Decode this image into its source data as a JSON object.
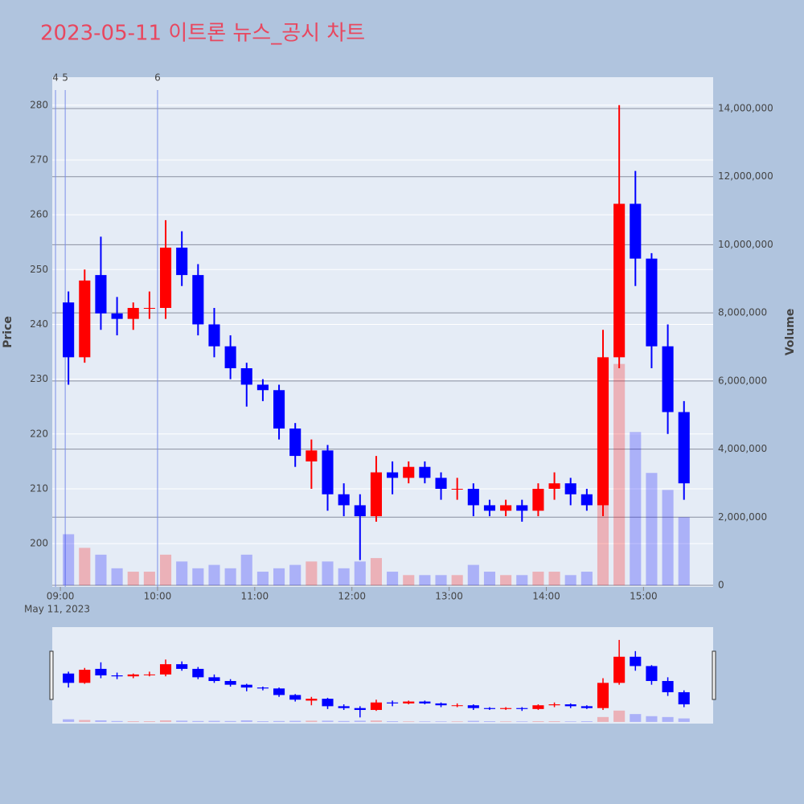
{
  "chart_data": {
    "type": "candlestick",
    "title": "2023-05-11 이트론 뉴스_공시 차트",
    "y_label": "Price",
    "y2_label": "Volume",
    "x_date_label": "May 11, 2023",
    "up_color": "#ff0000",
    "down_color": "#0000ff",
    "x": [
      "2023-05-11T09:00",
      "2023-05-11T09:10",
      "2023-05-11T09:20",
      "2023-05-11T09:30",
      "2023-05-11T09:40",
      "2023-05-11T09:50",
      "2023-05-11T10:00",
      "2023-05-11T10:10",
      "2023-05-11T10:20",
      "2023-05-11T10:30",
      "2023-05-11T10:40",
      "2023-05-11T10:50",
      "2023-05-11T11:00",
      "2023-05-11T11:10",
      "2023-05-11T11:20",
      "2023-05-11T11:30",
      "2023-05-11T11:40",
      "2023-05-11T11:50",
      "2023-05-11T12:00",
      "2023-05-11T12:10",
      "2023-05-11T12:20",
      "2023-05-11T12:30",
      "2023-05-11T12:40",
      "2023-05-11T12:50",
      "2023-05-11T13:00",
      "2023-05-11T13:10",
      "2023-05-11T13:20",
      "2023-05-11T13:30",
      "2023-05-11T13:40",
      "2023-05-11T13:50",
      "2023-05-11T14:00",
      "2023-05-11T14:10",
      "2023-05-11T14:20",
      "2023-05-11T14:30",
      "2023-05-11T14:40",
      "2023-05-11T14:50",
      "2023-05-11T15:00",
      "2023-05-11T15:10",
      "2023-05-11T15:20"
    ],
    "open": [
      244,
      234,
      249,
      242,
      241,
      243,
      243,
      254,
      249,
      240,
      236,
      232,
      229,
      228,
      221,
      215,
      217,
      209,
      207,
      205,
      213,
      212,
      214,
      212,
      210,
      210,
      207,
      206,
      207,
      206,
      210,
      211,
      209,
      207,
      234,
      262,
      252,
      236,
      224
    ],
    "high": [
      246,
      250,
      256,
      245,
      244,
      246,
      259,
      257,
      251,
      243,
      238,
      233,
      230,
      229,
      222,
      219,
      218,
      211,
      209,
      216,
      215,
      215,
      215,
      213,
      212,
      211,
      208,
      208,
      208,
      211,
      213,
      212,
      210,
      239,
      280,
      268,
      253,
      240,
      226
    ],
    "low": [
      229,
      233,
      239,
      238,
      239,
      241,
      241,
      247,
      238,
      234,
      230,
      225,
      226,
      219,
      214,
      210,
      206,
      205,
      197,
      204,
      209,
      211,
      211,
      208,
      208,
      205,
      205,
      205,
      204,
      205,
      208,
      207,
      206,
      205,
      232,
      247,
      232,
      220,
      208
    ],
    "close": [
      234,
      248,
      242,
      241,
      243,
      243,
      254,
      249,
      240,
      236,
      232,
      229,
      228,
      221,
      216,
      217,
      209,
      207,
      205,
      213,
      212,
      214,
      212,
      210,
      210,
      207,
      206,
      207,
      206,
      210,
      211,
      209,
      207,
      234,
      262,
      252,
      236,
      224,
      211
    ],
    "volume": [
      1500000,
      1100000,
      900000,
      500000,
      400000,
      400000,
      900000,
      700000,
      500000,
      600000,
      500000,
      900000,
      400000,
      500000,
      600000,
      700000,
      700000,
      500000,
      700000,
      800000,
      400000,
      300000,
      300000,
      300000,
      300000,
      600000,
      400000,
      300000,
      300000,
      400000,
      400000,
      300000,
      400000,
      2800000,
      6500000,
      4500000,
      3300000,
      2800000,
      2000000
    ],
    "xlim": [
      "2023-05-11T08:55",
      "2023-05-11T15:43"
    ],
    "xticks": [
      {
        "value": "2023-05-11T09:00",
        "label": "09:00"
      },
      {
        "value": "2023-05-11T10:00",
        "label": "10:00"
      },
      {
        "value": "2023-05-11T11:00",
        "label": "11:00"
      },
      {
        "value": "2023-05-11T12:00",
        "label": "12:00"
      },
      {
        "value": "2023-05-11T13:00",
        "label": "13:00"
      },
      {
        "value": "2023-05-11T14:00",
        "label": "14:00"
      },
      {
        "value": "2023-05-11T15:00",
        "label": "15:00"
      }
    ],
    "ylim": [
      192.1,
      285.1
    ],
    "yticks": [
      200,
      210,
      220,
      230,
      240,
      250,
      260,
      270,
      280
    ],
    "y2lim": [
      -47000,
      14920000
    ],
    "y2ticks": [
      0,
      {
        "value": 2000000,
        "label": "2,000,000"
      },
      {
        "value": 4000000,
        "label": "4,000,000"
      },
      {
        "value": 6000000,
        "label": "6,000,000"
      },
      {
        "value": 8000000,
        "label": "8,000,000"
      },
      {
        "value": 10000000,
        "label": "10,000,000"
      },
      {
        "value": 12000000,
        "label": "12,000,000"
      },
      {
        "value": 14000000,
        "label": "14,000,000"
      }
    ],
    "markers": [
      {
        "x": "2023-05-11T08:57",
        "label": "4"
      },
      {
        "x": "2023-05-11T09:03",
        "label": "5"
      },
      {
        "x": "2023-05-11T10:00",
        "label": "6"
      }
    ],
    "grid": true,
    "range_slider": true
  }
}
